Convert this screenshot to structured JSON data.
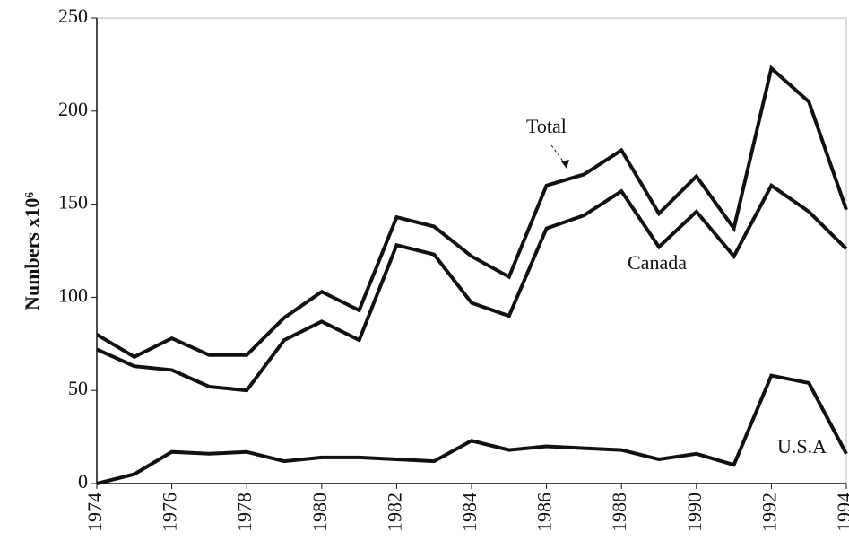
{
  "chart_data": {
    "type": "line",
    "y_label": "Numbers x10⁶",
    "x": [
      1974,
      1975,
      1976,
      1977,
      1978,
      1979,
      1980,
      1981,
      1982,
      1983,
      1984,
      1985,
      1986,
      1987,
      1988,
      1989,
      1990,
      1991,
      1992,
      1993,
      1994
    ],
    "series": [
      {
        "name": "Total",
        "color": "#111111",
        "values": [
          80,
          68,
          78,
          69,
          69,
          89,
          103,
          93,
          143,
          138,
          122,
          111,
          160,
          166,
          179,
          145,
          165,
          137,
          223,
          205,
          147
        ]
      },
      {
        "name": "Canada",
        "color": "#111111",
        "values": [
          72,
          63,
          61,
          52,
          50,
          77,
          87,
          77,
          128,
          123,
          97,
          90,
          137,
          144,
          157,
          127,
          146,
          122,
          160,
          146,
          126
        ]
      },
      {
        "name": "U.S.A",
        "color": "#111111",
        "values": [
          0,
          5,
          17,
          16,
          17,
          12,
          14,
          14,
          13,
          12,
          23,
          18,
          20,
          19,
          18,
          13,
          16,
          10,
          58,
          54,
          16
        ]
      }
    ],
    "xlim": [
      1974,
      1994
    ],
    "xticks": [
      1974,
      1976,
      1978,
      1980,
      1982,
      1984,
      1986,
      1988,
      1990,
      1992,
      1994
    ],
    "ylim": [
      0,
      250
    ],
    "yticks": [
      0,
      50,
      100,
      150,
      200,
      250
    ]
  }
}
